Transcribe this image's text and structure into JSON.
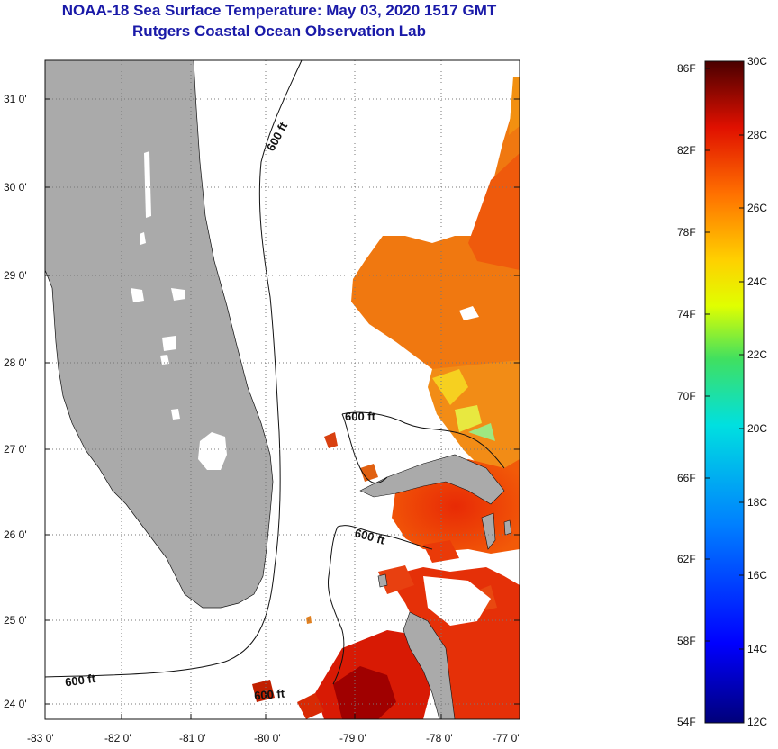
{
  "title_line1": "NOAA-18 Sea Surface Temperature:  May 03, 2020 1517 GMT",
  "title_line2": "Rutgers Coastal Ocean Observation Lab",
  "lat_labels": [
    "31 0'",
    "30 0'",
    "29 0'",
    "28 0'",
    "27 0'",
    "26 0'",
    "25 0'",
    "24 0'"
  ],
  "lon_labels": [
    "-83 0'",
    "-82 0'",
    "-81 0'",
    "-80 0'",
    "-79 0'",
    "-78 0'",
    "-77 0'"
  ],
  "contour_label": "600 ft",
  "colorbar": {
    "fahrenheit": [
      "86F",
      "82F",
      "78F",
      "74F",
      "70F",
      "66F",
      "62F",
      "58F",
      "54F"
    ],
    "celsius": [
      "30C",
      "28C",
      "26C",
      "24C",
      "22C",
      "20C",
      "18C",
      "16C",
      "14C",
      "12C"
    ]
  }
}
